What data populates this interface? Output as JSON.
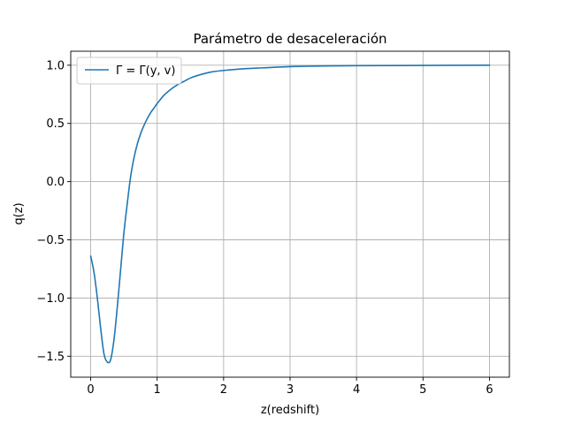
{
  "chart_data": {
    "type": "line",
    "title": "Parámetro de desaceleración",
    "xlabel": "z(redshift)",
    "ylabel": "q(z)",
    "xlim": [
      -0.3,
      6.3
    ],
    "ylim": [
      -1.68,
      1.12
    ],
    "xticks": [
      0,
      1,
      2,
      3,
      4,
      5,
      6
    ],
    "xtick_labels": [
      "0",
      "1",
      "2",
      "3",
      "4",
      "5",
      "6"
    ],
    "yticks": [
      -1.5,
      -1.0,
      -0.5,
      0.0,
      0.5,
      1.0
    ],
    "ytick_labels": [
      "−1.5",
      "−1.0",
      "−0.5",
      "0.0",
      "0.5",
      "1.0"
    ],
    "grid": true,
    "legend_position": "upper-left",
    "series": [
      {
        "name": "Γ = Γ(y, v)",
        "color": "#1f77b4",
        "x": [
          0,
          0.05,
          0.1,
          0.15,
          0.2,
          0.25,
          0.3,
          0.35,
          0.4,
          0.45,
          0.5,
          0.55,
          0.6,
          0.65,
          0.7,
          0.75,
          0.8,
          0.85,
          0.9,
          0.95,
          1.0,
          1.1,
          1.2,
          1.3,
          1.4,
          1.5,
          1.6,
          1.8,
          2.0,
          2.2,
          2.5,
          3.0,
          3.5,
          4.0,
          5.0,
          6.0
        ],
        "y": [
          -0.64,
          -0.78,
          -1.0,
          -1.26,
          -1.48,
          -1.55,
          -1.53,
          -1.36,
          -1.08,
          -0.76,
          -0.44,
          -0.19,
          0.04,
          0.2,
          0.32,
          0.41,
          0.48,
          0.54,
          0.59,
          0.63,
          0.67,
          0.74,
          0.79,
          0.83,
          0.86,
          0.89,
          0.91,
          0.94,
          0.955,
          0.965,
          0.975,
          0.988,
          0.993,
          0.996,
          0.998,
          1.0
        ]
      }
    ]
  }
}
